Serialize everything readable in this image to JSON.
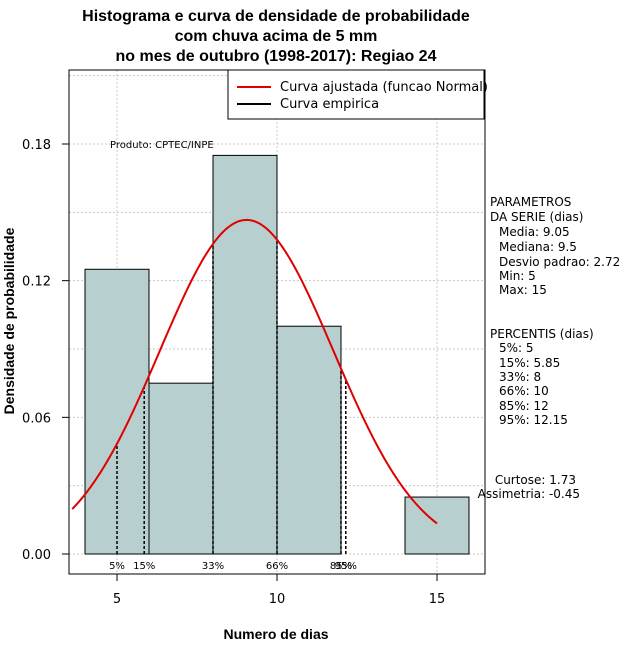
{
  "chart_data": {
    "type": "bar",
    "title": [
      "Histograma e curva de densidade de probabilidade",
      "com chuva acima de 5 mm",
      "no mes de outubro (1998-2017): Regiao 24"
    ],
    "xlabel": "Numero de dias",
    "ylabel": "Densidade de probabilidade",
    "xlim": [
      3.6,
      16.5
    ],
    "ylim": [
      0,
      0.21
    ],
    "x_ticks": [
      5,
      10,
      15
    ],
    "x_tick_labels": [
      "5",
      "10",
      "15"
    ],
    "y_ticks": [
      0.0,
      0.06,
      0.12,
      0.18
    ],
    "y_tick_labels": [
      "0.00",
      "0.06",
      "0.12",
      "0.18"
    ],
    "grid": true,
    "bins": [
      {
        "x0": 4,
        "x1": 6,
        "density": 0.125
      },
      {
        "x0": 6,
        "x1": 8,
        "density": 0.075
      },
      {
        "x0": 8,
        "x1": 10,
        "density": 0.175
      },
      {
        "x0": 10,
        "x1": 12,
        "density": 0.1
      },
      {
        "x0": 12,
        "x1": 14,
        "density": 0.0
      },
      {
        "x0": 14,
        "x1": 16,
        "density": 0.025
      }
    ],
    "bar_color": "#b7cfcf",
    "normal_curve": {
      "mean": 9.05,
      "sd": 2.72,
      "x_from": 3.6,
      "x_to": 15,
      "color": "#e00000"
    },
    "percentiles": [
      {
        "label": "5%",
        "x": 5
      },
      {
        "label": "15%",
        "x": 5.85
      },
      {
        "label": "33%",
        "x": 8
      },
      {
        "label": "66%",
        "x": 10
      },
      {
        "label": "85%",
        "x": 12
      },
      {
        "label": "95%",
        "x": 12.15
      }
    ],
    "legend": {
      "position": "top-right",
      "entries": [
        {
          "label": "Curva ajustada (funcao Normal)",
          "color": "#e00000"
        },
        {
          "label": "Curva empirica",
          "color": "#000000"
        }
      ]
    },
    "annotation": "Produto: CPTEC/INPE"
  },
  "side_panel": {
    "parametros": [
      "PARAMETROS",
      "DA SERIE (dias)",
      "Media: 9.05",
      "Mediana: 9.5",
      "Desvio padrao: 2.72",
      "Min: 5",
      "Max: 15"
    ],
    "percentis": [
      "PERCENTIS (dias)",
      "5%: 5",
      "15%: 5.85",
      "33%: 8",
      "66%: 10",
      "85%: 12",
      "95%: 12.15"
    ],
    "shape": [
      "Curtose: 1.73",
      "Assimetria: -0.45"
    ]
  }
}
